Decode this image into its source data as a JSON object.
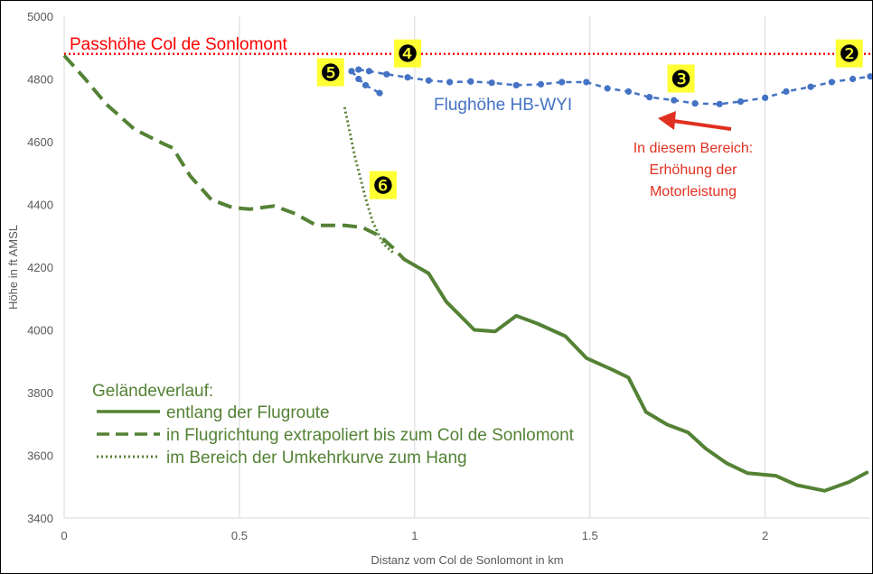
{
  "chart_data": {
    "type": "line",
    "xlabel": "Distanz  vom Col de Sonlomont in km",
    "ylabel": "Höhe in ft AMSL",
    "xlim": [
      0,
      2.3
    ],
    "ylim": [
      3400,
      5000
    ],
    "xticks": [
      0,
      0.5,
      1,
      1.5,
      2
    ],
    "xtick_labels": [
      "0",
      "0.5",
      "1",
      "1.5",
      "2"
    ],
    "yticks": [
      3400,
      3600,
      3800,
      4000,
      4200,
      4400,
      4600,
      4800,
      5000
    ],
    "ytick_labels": [
      "3400",
      "3600",
      "3800",
      "4000",
      "4200",
      "4400",
      "4600",
      "4800",
      "5000"
    ],
    "grid": "vertical",
    "reference_line": {
      "y": 4880,
      "label": "Passhöhe Col de Sonlomont",
      "color": "#ff0000"
    },
    "series": [
      {
        "key": "terrain_route",
        "name": "entlang der Flugroute",
        "color": "#548235",
        "style": "solid",
        "x": [
          0.97,
          1.04,
          1.09,
          1.17,
          1.23,
          1.29,
          1.35,
          1.43,
          1.49,
          1.56,
          1.61,
          1.66,
          1.72,
          1.78,
          1.83,
          1.89,
          1.95,
          2.03,
          2.09,
          2.17,
          2.24,
          2.29
        ],
        "y": [
          4225,
          4180,
          4090,
          4000,
          3995,
          4045,
          4020,
          3980,
          3910,
          3875,
          3848,
          3738,
          3698,
          3673,
          3622,
          3575,
          3543,
          3535,
          3505,
          3487,
          3515,
          3545
        ]
      },
      {
        "key": "terrain_extrapolated",
        "name": "in Flugrichtung extrapoliert bis zum Col de Sonlomont",
        "color": "#548235",
        "style": "dashed",
        "x": [
          0,
          0.06,
          0.12,
          0.2,
          0.28,
          0.31,
          0.36,
          0.42,
          0.48,
          0.53,
          0.6,
          0.66,
          0.72,
          0.8,
          0.85,
          0.9,
          0.94,
          0.97
        ],
        "y": [
          4875,
          4800,
          4720,
          4640,
          4595,
          4580,
          4490,
          4415,
          4390,
          4385,
          4395,
          4370,
          4333,
          4333,
          4327,
          4300,
          4260,
          4225
        ]
      },
      {
        "key": "terrain_turn",
        "name": "im Bereich der Umkehrkurve zum Hang",
        "color": "#548235",
        "style": "dotted",
        "x": [
          0.8,
          0.83,
          0.86,
          0.88,
          0.91,
          0.94
        ],
        "y": [
          4710,
          4550,
          4420,
          4345,
          4275,
          4245
        ]
      },
      {
        "key": "flight_main",
        "name": "",
        "color": "#4472c4",
        "style": "dashed-dots",
        "x": [
          0.84,
          0.87,
          0.92,
          0.98,
          1.04,
          1.1,
          1.16,
          1.22,
          1.29,
          1.36,
          1.42,
          1.49,
          1.55,
          1.61,
          1.67,
          1.74,
          1.8,
          1.87,
          1.93,
          2.0,
          2.06,
          2.13,
          2.19,
          2.25,
          2.3
        ],
        "y": [
          4830,
          4825,
          4815,
          4805,
          4795,
          4790,
          4792,
          4788,
          4780,
          4783,
          4790,
          4790,
          4770,
          4760,
          4742,
          4732,
          4722,
          4720,
          4728,
          4740,
          4760,
          4775,
          4790,
          4800,
          4808
        ]
      },
      {
        "key": "flight_turn",
        "name": "",
        "color": "#4472c4",
        "style": "dashed-dots",
        "x": [
          0.82,
          0.84,
          0.86,
          0.9
        ],
        "y": [
          4825,
          4800,
          4780,
          4755
        ]
      }
    ],
    "annotations": {
      "flight_label": "Flughöhe HB-WYI",
      "engine_note": [
        "In diesem Bereich:",
        "Erhöhung der",
        "Motorleistung"
      ],
      "legend_title": "Geländeverlauf:",
      "markers": [
        {
          "label": "❷",
          "x": 2.24,
          "y": 4880
        },
        {
          "label": "❸",
          "x": 1.76,
          "y": 4800
        },
        {
          "label": "❹",
          "x": 0.98,
          "y": 4880
        },
        {
          "label": "❺",
          "x": 0.76,
          "y": 4820
        },
        {
          "label": "❻",
          "x": 0.91,
          "y": 4460
        }
      ]
    },
    "colors": {
      "terrain": "#548235",
      "flight": "#4472c4",
      "reference": "#ff0000",
      "note": "#e03020",
      "marker_bg": "#ffff33",
      "grid": "#d9d9d9"
    }
  }
}
